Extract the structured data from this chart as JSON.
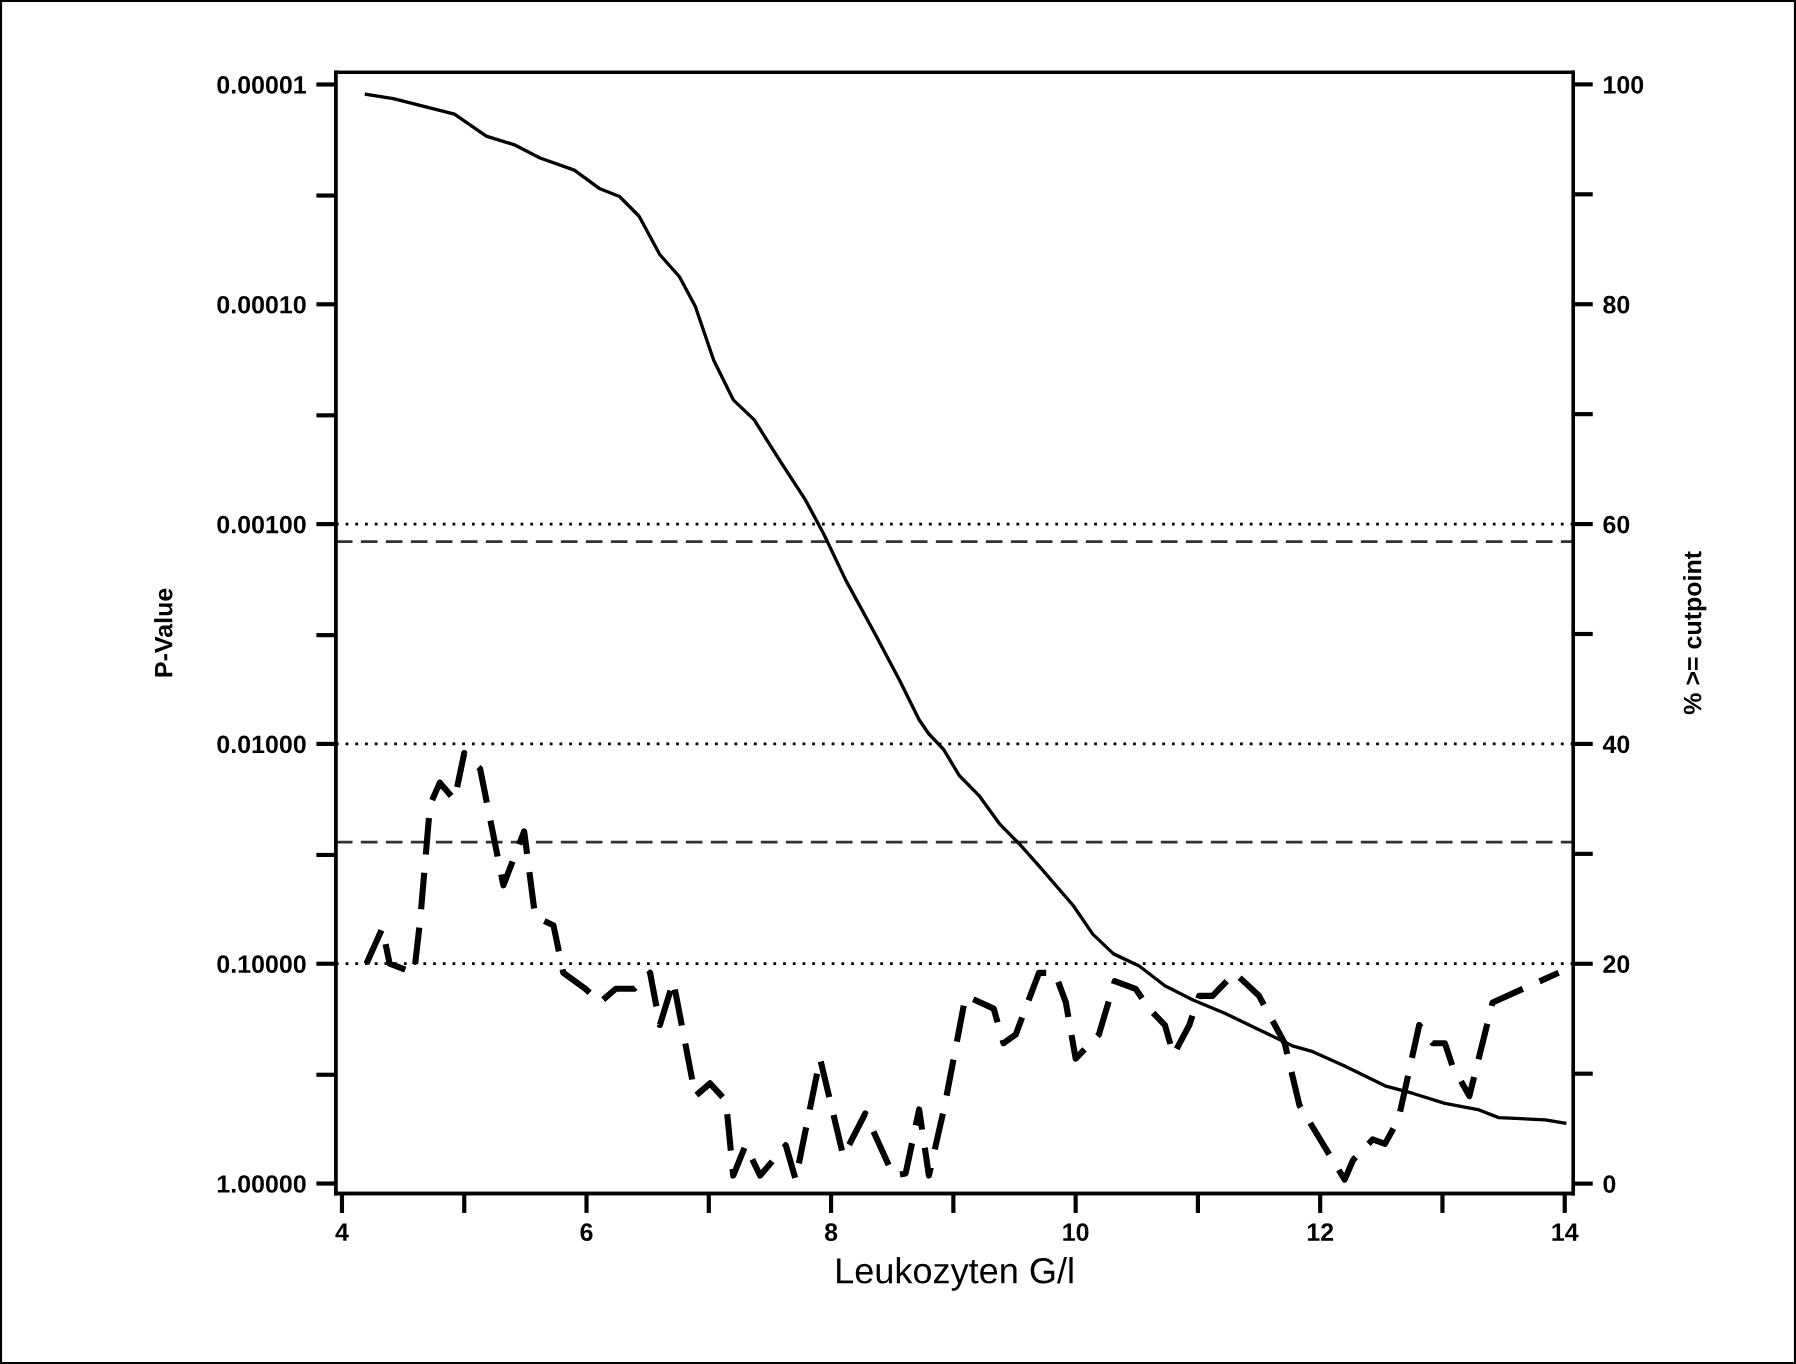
{
  "chart_data": {
    "type": "line",
    "xlabel": "Leukozyten G/l",
    "ylabel": "P-Value",
    "y2label": "% >= cutpoint",
    "log": "y",
    "grid": false,
    "xlim": [
      3.95,
      14.07
    ],
    "xticks": [
      4,
      {
        "value": 5,
        "label": null
      },
      6,
      {
        "value": 7,
        "label": null
      },
      8,
      {
        "value": 9,
        "label": null
      },
      10,
      {
        "value": 11,
        "label": null
      },
      12,
      {
        "value": 13,
        "label": null
      },
      14
    ],
    "ylim": [
      1.11,
      8.8e-06
    ],
    "yticks": [
      {
        "value": 1e-05,
        "label": "0.00001"
      },
      {
        "value": 3.2e-05,
        "label": null
      },
      {
        "value": 0.0001,
        "label": "0.00010"
      },
      {
        "value": 0.00032,
        "label": null
      },
      {
        "value": 0.001,
        "label": "0.00100"
      },
      {
        "value": 0.0032,
        "label": null
      },
      {
        "value": 0.01,
        "label": "0.01000"
      },
      {
        "value": 0.032,
        "label": null
      },
      {
        "value": 0.1,
        "label": "0.10000"
      },
      {
        "value": 0.32,
        "label": null
      },
      {
        "value": 1,
        "label": "1.00000"
      }
    ],
    "y2lim": [
      -0.9,
      101.1
    ],
    "y2ticks": [
      0,
      {
        "value": 10,
        "label": null
      },
      20,
      {
        "value": 30,
        "label": null
      },
      40,
      {
        "value": 50,
        "label": null
      },
      60,
      {
        "value": 70,
        "label": null
      },
      80,
      {
        "value": 90,
        "label": null
      },
      100
    ],
    "ref_lines": [
      {
        "axis": "y",
        "value": 0.001,
        "color": "#000000",
        "line_style": "dotted"
      },
      {
        "axis": "y",
        "value": 0.01,
        "color": "#000000",
        "line_style": "dotted"
      },
      {
        "axis": "y",
        "value": 0.1,
        "color": "#000000",
        "line_style": "dotted"
      },
      {
        "axis": "y",
        "value": 0.0012,
        "color": "#333333",
        "line_style": "dashed"
      },
      {
        "axis": "y",
        "value": 0.028,
        "color": "#333333",
        "line_style": "dashed"
      }
    ],
    "series": [
      {
        "axis": "y2",
        "color": "#000000",
        "line_style": "solid",
        "x": [
          4.2,
          4.42,
          4.92,
          5.18,
          5.41,
          5.62,
          5.9,
          6.11,
          6.27,
          6.43,
          6.6,
          6.76,
          6.89,
          7.04,
          7.2,
          7.37,
          7.58,
          7.79,
          7.94,
          8.12,
          8.36,
          8.56,
          8.72,
          8.8,
          8.92,
          9.05,
          9.21,
          9.38,
          9.54,
          9.7,
          9.98,
          10.14,
          10.31,
          10.52,
          10.73,
          10.96,
          11.22,
          11.5,
          11.78,
          11.94,
          12.2,
          12.53,
          12.76,
          13.02,
          13.3,
          13.46,
          13.84,
          14.0
        ],
        "values": [
          99.1,
          98.7,
          97.3,
          95.3,
          94.5,
          93.3,
          92.2,
          90.5,
          89.8,
          88.0,
          84.5,
          82.5,
          79.8,
          74.9,
          71.3,
          69.5,
          65.8,
          62.2,
          59.1,
          54.9,
          50.0,
          45.8,
          42.2,
          40.9,
          39.5,
          37.1,
          35.3,
          32.7,
          30.9,
          28.9,
          25.3,
          22.7,
          20.9,
          19.8,
          18.0,
          16.7,
          15.5,
          14.0,
          12.5,
          12.0,
          10.7,
          8.9,
          8.2,
          7.3,
          6.7,
          6.0,
          5.8,
          5.5
        ]
      },
      {
        "axis": "y",
        "color": "#000000",
        "line_style": "dashed",
        "x": [
          4.2,
          4.33,
          4.39,
          4.59,
          4.64,
          4.72,
          4.8,
          4.92,
          5.0,
          5.13,
          5.32,
          5.49,
          5.58,
          5.73,
          5.81,
          5.99,
          6.11,
          6.24,
          6.39,
          6.52,
          6.6,
          6.71,
          6.89,
          7.01,
          7.14,
          7.2,
          7.3,
          7.42,
          7.63,
          7.71,
          7.91,
          8.1,
          8.28,
          8.51,
          8.61,
          8.72,
          8.8,
          8.93,
          9.1,
          9.33,
          9.41,
          9.51,
          9.7,
          9.83,
          9.92,
          10.0,
          10.19,
          10.32,
          10.49,
          10.6,
          10.73,
          10.8,
          10.93,
          11.01,
          11.12,
          11.3,
          11.5,
          11.71,
          11.83,
          12.2,
          12.27,
          12.43,
          12.53,
          12.64,
          12.81,
          12.92,
          13.02,
          13.08,
          13.22,
          13.41,
          13.95
        ],
        "values": [
          0.1,
          0.069,
          0.1,
          0.11,
          0.063,
          0.019,
          0.015,
          0.018,
          0.011,
          0.013,
          0.044,
          0.025,
          0.061,
          0.067,
          0.11,
          0.13,
          0.15,
          0.13,
          0.13,
          0.11,
          0.19,
          0.12,
          0.4,
          0.35,
          0.42,
          0.92,
          0.67,
          0.92,
          0.67,
          0.96,
          0.27,
          0.75,
          0.48,
          0.92,
          0.9,
          0.46,
          0.92,
          0.44,
          0.14,
          0.16,
          0.23,
          0.21,
          0.11,
          0.11,
          0.15,
          0.27,
          0.21,
          0.12,
          0.13,
          0.16,
          0.19,
          0.26,
          0.19,
          0.14,
          0.14,
          0.11,
          0.14,
          0.23,
          0.44,
          0.96,
          0.78,
          0.63,
          0.66,
          0.51,
          0.19,
          0.23,
          0.23,
          0.29,
          0.4,
          0.15,
          0.11
        ]
      }
    ]
  }
}
